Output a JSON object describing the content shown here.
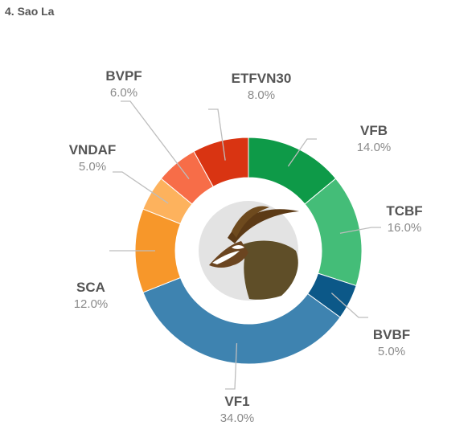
{
  "page": {
    "title": "4. Sao La"
  },
  "chart_data": {
    "type": "pie",
    "variant": "donut",
    "title": "4. Sao La",
    "legend": "none",
    "center_image": "saola-antelope-logo",
    "slices": [
      {
        "label": "VFB",
        "value": 14.0,
        "display": "14.0%",
        "color": "#0e9a48"
      },
      {
        "label": "TCBF",
        "value": 16.0,
        "display": "16.0%",
        "color": "#44bd78"
      },
      {
        "label": "BVBF",
        "value": 5.0,
        "display": "5.0%",
        "color": "#0c5888"
      },
      {
        "label": "VF1",
        "value": 34.0,
        "display": "34.0%",
        "color": "#3e83b0"
      },
      {
        "label": "SCA",
        "value": 12.0,
        "display": "12.0%",
        "color": "#f7972a"
      },
      {
        "label": "VNDAF",
        "value": 5.0,
        "display": "5.0%",
        "color": "#fdb25d"
      },
      {
        "label": "BVPF",
        "value": 6.0,
        "display": "6.0%",
        "color": "#f76d48"
      },
      {
        "label": "ETFVN30",
        "value": 8.0,
        "display": "8.0%",
        "color": "#d93412"
      }
    ]
  }
}
